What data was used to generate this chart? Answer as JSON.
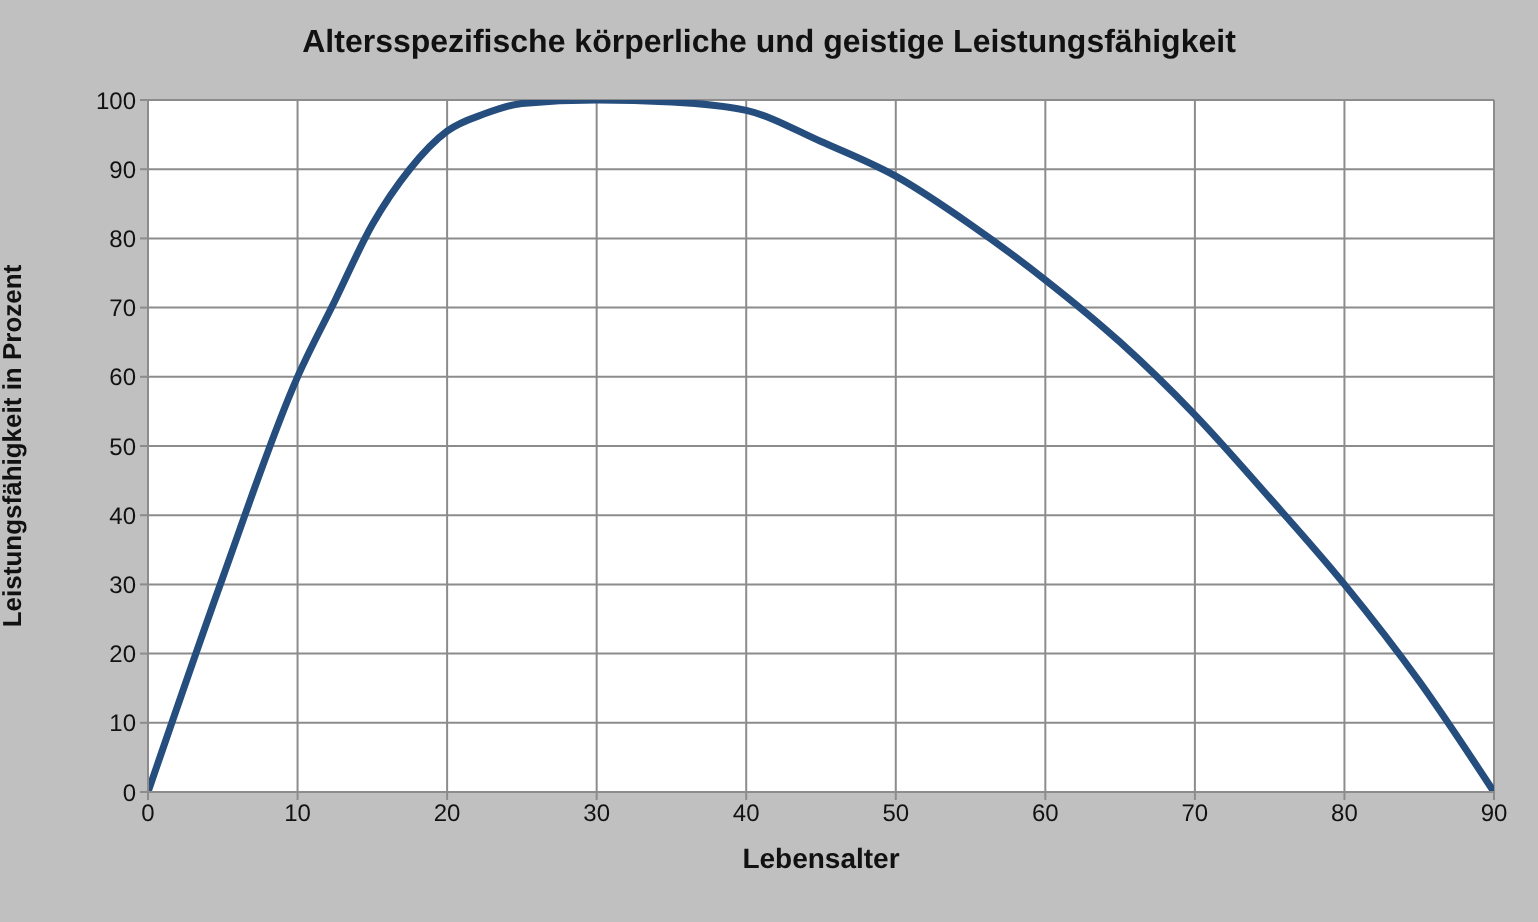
{
  "chart_data": {
    "type": "line",
    "title": "Altersspezifische körperliche und geistige Leistungsfähigkeit",
    "xlabel": "Lebensalter",
    "ylabel": "Leistungsfähigkeit in Prozent",
    "x": [
      0,
      5,
      10,
      12.5,
      15,
      17.5,
      20,
      22.5,
      25,
      30,
      35,
      40,
      45,
      50,
      55,
      60,
      65,
      70,
      75,
      80,
      85,
      90
    ],
    "series": [
      {
        "color": "#254e7e",
        "values": [
          0,
          31,
          60,
          71,
          82,
          90,
          95.5,
          98,
          99.5,
          100,
          99.7,
          98.5,
          94,
          89,
          82,
          74,
          65,
          54.5,
          42.5,
          30,
          16,
          0
        ]
      }
    ],
    "xlim": [
      0,
      90
    ],
    "xticks": [
      0,
      10,
      20,
      30,
      40,
      50,
      60,
      70,
      80,
      90
    ],
    "ylim": [
      0,
      100
    ],
    "yticks": [
      0,
      10,
      20,
      30,
      40,
      50,
      60,
      70,
      80,
      90,
      100
    ],
    "grid": true,
    "legend": false,
    "marker": "none",
    "line_style": "solid"
  }
}
